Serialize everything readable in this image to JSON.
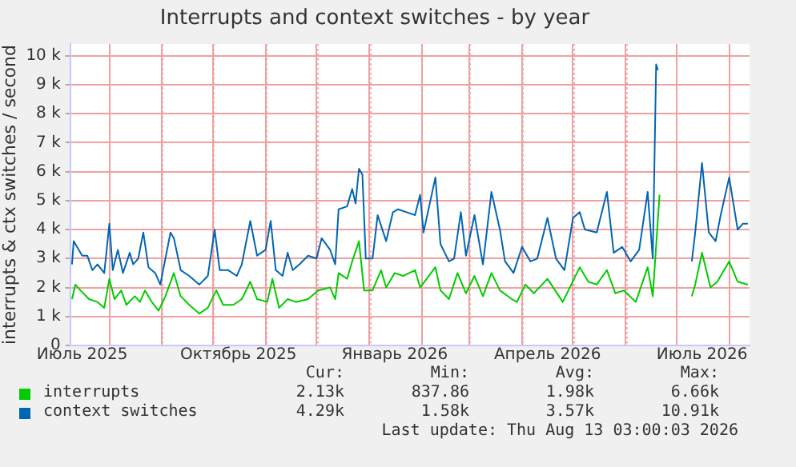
{
  "chart_data": {
    "type": "line",
    "title": "Interrupts and context switches - by year",
    "ylabel": "interrupts & ctx switches / second",
    "xlim": [
      "2025-07-09",
      "2026-08-13"
    ],
    "xticks": [
      {
        "value": "2025-07-16",
        "label": "Июль 2025"
      },
      {
        "value": "2025-08-01",
        "label": null
      },
      {
        "value": "2025-09-01",
        "label": null
      },
      {
        "value": "2025-10-01",
        "label": null
      },
      {
        "value": "2025-10-16",
        "label": "Октябрь 2025"
      },
      {
        "value": "2025-11-01",
        "label": null
      },
      {
        "value": "2025-12-01",
        "label": null
      },
      {
        "value": "2026-01-01",
        "label": null
      },
      {
        "value": "2026-01-16",
        "label": "Январь 2026"
      },
      {
        "value": "2026-02-01",
        "label": null
      },
      {
        "value": "2026-03-01",
        "label": null
      },
      {
        "value": "2026-04-01",
        "label": null
      },
      {
        "value": "2026-04-16",
        "label": "Апрель 2026"
      },
      {
        "value": "2026-05-01",
        "label": null
      },
      {
        "value": "2026-06-01",
        "label": null
      },
      {
        "value": "2026-07-01",
        "label": null
      },
      {
        "value": "2026-07-16",
        "label": "Июль 2026"
      },
      {
        "value": "2026-08-01",
        "label": null
      }
    ],
    "ylim": [
      0,
      10400
    ],
    "yticks": [
      0,
      {
        "value": 1000,
        "label": "1 k"
      },
      {
        "value": 2000,
        "label": "2 k"
      },
      {
        "value": 3000,
        "label": "3 k"
      },
      {
        "value": 4000,
        "label": "4 k"
      },
      {
        "value": 5000,
        "label": "5 k"
      },
      {
        "value": 6000,
        "label": "6 k"
      },
      {
        "value": 7000,
        "label": "7 k"
      },
      {
        "value": 8000,
        "label": "8 k"
      },
      {
        "value": 9000,
        "label": "9 k"
      },
      {
        "value": 10000,
        "label": "10 k"
      }
    ],
    "grid": true,
    "legend": "bottom",
    "marker": "none",
    "line_style": "solid",
    "series": [
      {
        "name": "interrupts",
        "color": "#00cc00",
        "x": [
          "2025-07-10",
          "2025-07-12",
          "2025-07-15",
          "2025-07-20",
          "2025-07-25",
          "2025-07-29",
          "2025-08-01",
          "2025-08-04",
          "2025-08-08",
          "2025-08-11",
          "2025-08-16",
          "2025-08-19",
          "2025-08-22",
          "2025-08-26",
          "2025-08-30",
          "2025-09-03",
          "2025-09-08",
          "2025-09-12",
          "2025-09-17",
          "2025-09-23",
          "2025-09-28",
          "2025-10-03",
          "2025-10-07",
          "2025-10-13",
          "2025-10-18",
          "2025-10-23",
          "2025-10-27",
          "2025-11-02",
          "2025-11-05",
          "2025-11-09",
          "2025-11-14",
          "2025-11-19",
          "2025-11-26",
          "2025-12-02",
          "2025-12-09",
          "2025-12-12",
          "2025-12-14",
          "2025-12-19",
          "2025-12-22",
          "2025-12-26",
          "2025-12-29",
          "2026-01-03",
          "2026-01-08",
          "2026-01-11",
          "2026-01-16",
          "2026-01-21",
          "2026-01-28",
          "2026-01-31",
          "2026-02-09",
          "2026-02-12",
          "2026-02-17",
          "2026-02-22",
          "2026-02-27",
          "2026-03-04",
          "2026-03-09",
          "2026-03-14",
          "2026-03-19",
          "2026-03-26",
          "2026-03-29",
          "2026-04-03",
          "2026-04-08",
          "2026-04-16",
          "2026-04-25",
          "2026-05-05",
          "2026-05-10",
          "2026-05-15",
          "2026-05-21",
          "2026-05-26",
          "2026-05-31",
          "2026-06-07",
          "2026-06-14",
          "2026-06-17",
          "2026-06-21",
          "2026-06-30",
          "2026-07-10",
          "2026-07-12",
          "2026-07-16",
          "2026-07-21",
          "2026-07-25",
          "2026-08-01",
          "2026-08-06",
          "2026-08-12"
        ],
        "values": [
          1600,
          2100,
          1900,
          1600,
          1500,
          1300,
          2300,
          1600,
          1900,
          1400,
          1700,
          1500,
          1900,
          1500,
          1200,
          1700,
          2500,
          1700,
          1400,
          1100,
          1300,
          1900,
          1400,
          1400,
          1600,
          2200,
          1600,
          1500,
          2300,
          1300,
          1600,
          1500,
          1600,
          1900,
          2000,
          1600,
          2500,
          2300,
          2900,
          3600,
          1900,
          1900,
          2600,
          2000,
          2500,
          2400,
          2600,
          2000,
          2700,
          1900,
          1600,
          2500,
          1800,
          2400,
          1700,
          2500,
          1900,
          1600,
          1500,
          2100,
          1800,
          2300,
          1500,
          2700,
          2200,
          2100,
          2600,
          1800,
          1900,
          1500,
          2700,
          1700,
          5200,
          null,
          1700,
          2100,
          3200,
          2000,
          2200,
          2900,
          2200,
          2100
        ]
      },
      {
        "name": "context switches",
        "color": "#0066b3",
        "x": [
          "2025-07-10",
          "2025-07-11",
          "2025-07-14",
          "2025-07-16",
          "2025-07-19",
          "2025-07-22",
          "2025-07-25",
          "2025-07-29",
          "2025-08-01",
          "2025-08-03",
          "2025-08-06",
          "2025-08-09",
          "2025-08-13",
          "2025-08-15",
          "2025-08-18",
          "2025-08-21",
          "2025-08-24",
          "2025-08-28",
          "2025-08-31",
          "2025-09-06",
          "2025-09-08",
          "2025-09-12",
          "2025-09-17",
          "2025-09-23",
          "2025-09-28",
          "2025-10-02",
          "2025-10-05",
          "2025-10-10",
          "2025-10-15",
          "2025-10-18",
          "2025-10-23",
          "2025-10-27",
          "2025-11-01",
          "2025-11-04",
          "2025-11-07",
          "2025-11-11",
          "2025-11-14",
          "2025-11-17",
          "2025-11-21",
          "2025-11-26",
          "2025-12-01",
          "2025-12-04",
          "2025-12-09",
          "2025-12-12",
          "2025-12-14",
          "2025-12-19",
          "2025-12-22",
          "2025-12-24",
          "2025-12-26",
          "2025-12-28",
          "2025-12-30",
          "2026-01-03",
          "2026-01-06",
          "2026-01-11",
          "2026-01-15",
          "2026-01-18",
          "2026-01-23",
          "2026-01-28",
          "2026-01-31",
          "2026-02-02",
          "2026-02-09",
          "2026-02-12",
          "2026-02-17",
          "2026-02-20",
          "2026-02-24",
          "2026-02-27",
          "2026-03-04",
          "2026-03-09",
          "2026-03-14",
          "2026-03-19",
          "2026-03-22",
          "2026-03-27",
          "2026-04-01",
          "2026-04-06",
          "2026-04-10",
          "2026-04-16",
          "2026-04-21",
          "2026-04-26",
          "2026-05-01",
          "2026-05-05",
          "2026-05-08",
          "2026-05-15",
          "2026-05-21",
          "2026-05-25",
          "2026-05-30",
          "2026-06-04",
          "2026-06-09",
          "2026-06-14",
          "2026-06-17",
          "2026-06-19",
          "2026-06-20",
          "2026-06-30",
          "2026-07-10",
          "2026-07-12",
          "2026-07-16",
          "2026-07-20",
          "2026-07-24",
          "2026-07-27",
          "2026-08-01",
          "2026-08-06",
          "2026-08-09",
          "2026-08-12"
        ],
        "values": [
          2800,
          3600,
          3300,
          3100,
          3100,
          2600,
          2800,
          2500,
          4200,
          2600,
          3300,
          2500,
          3200,
          2800,
          3000,
          3900,
          2700,
          2500,
          2100,
          3900,
          3700,
          2600,
          2400,
          2100,
          2400,
          4000,
          2600,
          2600,
          2400,
          2800,
          4300,
          3100,
          3300,
          4300,
          2600,
          2400,
          3200,
          2600,
          2800,
          3100,
          3000,
          3700,
          3300,
          2800,
          4700,
          4800,
          5400,
          4900,
          6100,
          5900,
          3000,
          3000,
          4500,
          3600,
          4600,
          4700,
          4600,
          4500,
          5200,
          3900,
          5800,
          3500,
          2900,
          3000,
          4600,
          3100,
          4500,
          2800,
          5300,
          4000,
          2900,
          2500,
          3400,
          2900,
          3000,
          4400,
          3000,
          2600,
          4400,
          4600,
          4000,
          3900,
          5300,
          3200,
          3400,
          2900,
          3300,
          5300,
          3000,
          9700,
          9500,
          null,
          2900,
          3900,
          6300,
          3900,
          3600,
          4500,
          5800,
          4000,
          4200,
          4200
        ]
      }
    ],
    "annotations": [
      "Cur:",
      "Min:",
      "Avg:",
      "Max:",
      "2.13k",
      "837.86",
      "1.98k",
      "6.66k",
      "4.29k",
      "1.58k",
      "3.57k",
      "10.91k",
      "Last update:  Thu Aug 13 03:00:03 2026"
    ]
  }
}
